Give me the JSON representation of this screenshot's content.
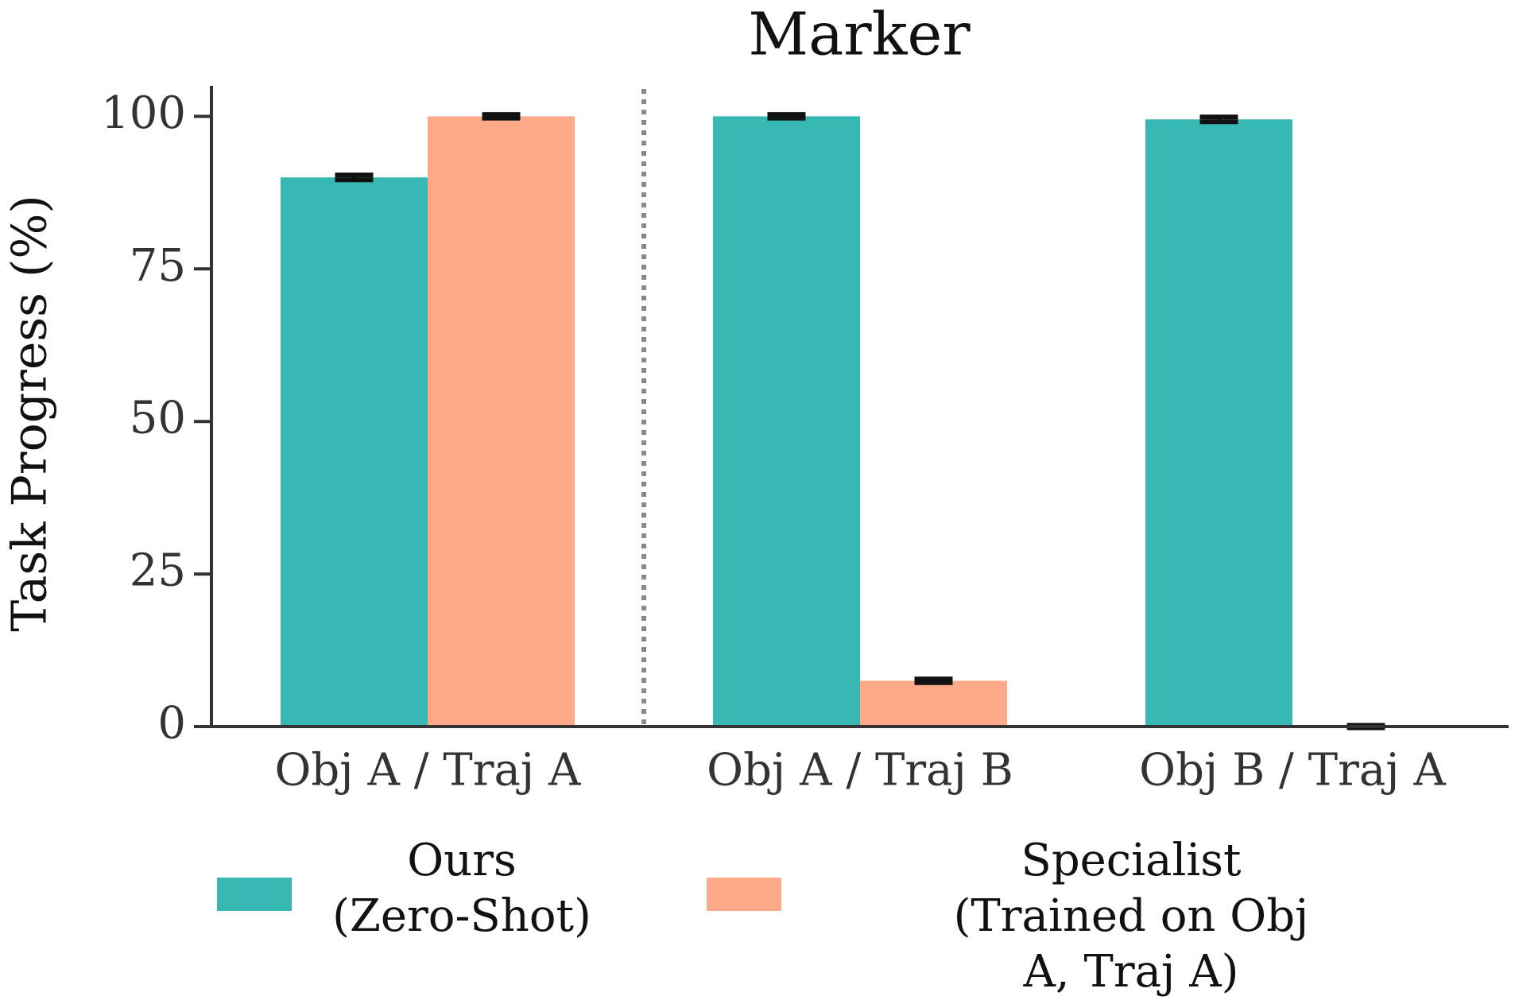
{
  "chart_data": {
    "type": "bar",
    "title": "Marker",
    "ylabel": "Task Progress (%)",
    "categories": [
      "Obj A / Traj A",
      "Obj A / Traj B",
      "Obj B / Traj A"
    ],
    "series": [
      {
        "name": "Ours\n(Zero-Shot)",
        "color": "#37b8b2",
        "values": [
          90,
          100,
          99.5
        ],
        "errors": [
          0.4,
          0.3,
          0.4
        ]
      },
      {
        "name": "Specialist\n(Trained on Obj A, Traj A)",
        "color": "#fea988",
        "values": [
          100,
          7.5,
          0
        ],
        "errors": [
          0.3,
          0.3,
          0.2
        ]
      }
    ],
    "ylim": [
      0,
      105
    ],
    "yticks": [
      0,
      25,
      50,
      75,
      100
    ],
    "grid": false
  }
}
